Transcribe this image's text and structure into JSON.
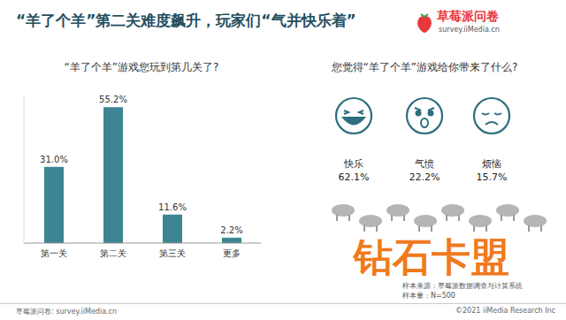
{
  "header": {
    "title": "“羊了个羊”第二关难度飙升，玩家们“气并快乐着”",
    "logo": "草莓派问卷",
    "logo_url": "survey.iiMedia.cn"
  },
  "chart_data": {
    "type": "bar",
    "title": "“羊了个羊”游戏您玩到第几关了?",
    "categories": [
      "第一关",
      "第二关",
      "第三关",
      "更多"
    ],
    "values": [
      31.0,
      55.2,
      11.6,
      2.2
    ],
    "value_labels": [
      "31.0%",
      "55.2%",
      "11.6%",
      "2.2%"
    ],
    "color": "#3e8593",
    "ylim": [
      0,
      60
    ],
    "data_labels": true,
    "tick_labels": "x",
    "grid": false
  },
  "panel": {
    "title": "您觉得“羊了个羊”游戏给你带来了什么?",
    "items": [
      {
        "label": "快乐",
        "value": 62.1,
        "value_label": "62.1%"
      },
      {
        "label": "气愤",
        "value": 22.2,
        "value_label": "22.2%"
      },
      {
        "label": "烦恼",
        "value": 15.7,
        "value_label": "15.7%"
      }
    ]
  },
  "notes": [
    "样本来源：草莓派数据调查与计算系统",
    "样本量：N=500"
  ],
  "footer": {
    "left": "草莓派问卷: survey.iiMedia.cn",
    "right": "©2021 iiMedia Research Inc"
  },
  "watermark": "钻石卡盟"
}
